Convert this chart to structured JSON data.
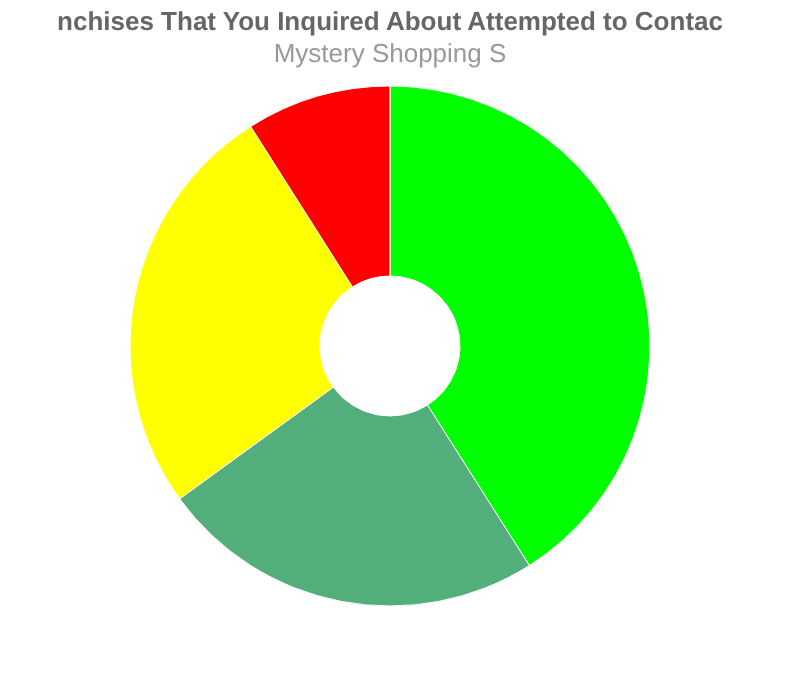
{
  "chart_data": {
    "type": "donut",
    "title": "nchises That You Inquired About Attempted to Contac",
    "subtitle": "Mystery Shopping S",
    "categories": [
      null,
      null,
      null,
      null
    ],
    "values": [
      41,
      24,
      26,
      9
    ],
    "colors": [
      "#00ff00",
      "#52ae7a",
      "#ffff00",
      "#ff0000"
    ],
    "legend": false
  }
}
